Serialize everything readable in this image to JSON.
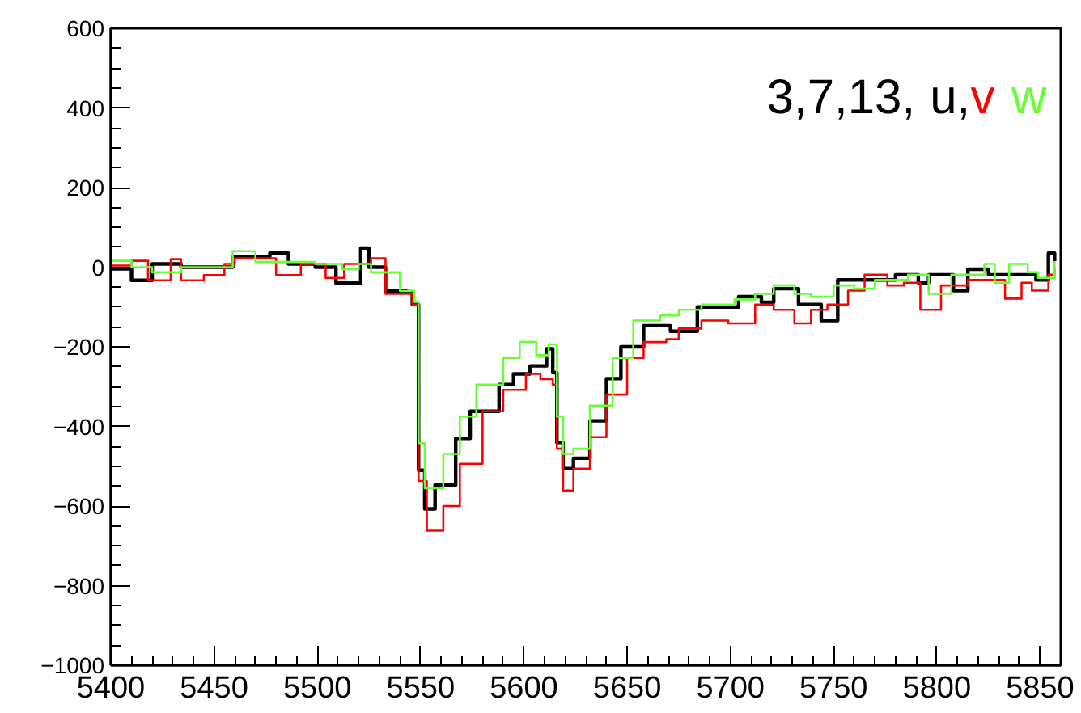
{
  "chart_data": {
    "type": "step",
    "title": "3,7,13,",
    "legend": "top right",
    "xlim": [
      5400,
      5860
    ],
    "ylim": [
      -1000,
      600
    ],
    "xticks": [
      5400,
      5450,
      5500,
      5550,
      5600,
      5650,
      5700,
      5750,
      5800,
      5850
    ],
    "yticks": [
      -1000,
      -800,
      -600,
      -400,
      -200,
      0,
      200,
      400,
      600
    ],
    "series": [
      {
        "name": "u,",
        "color": "#000000",
        "x": [
          5400,
          5410,
          5420,
          5434,
          5459,
          5477,
          5486,
          5499,
          5509,
          5521,
          5525,
          5533,
          5543,
          5546,
          5549,
          5552,
          5557,
          5567,
          5574,
          5588,
          5595,
          5603,
          5611,
          5614,
          5616,
          5619,
          5624,
          5632,
          5640,
          5647,
          5658,
          5671,
          5684,
          5704,
          5715,
          5721,
          5733,
          5744,
          5752,
          5770,
          5780,
          5791,
          5796,
          5808,
          5815,
          5825,
          5838,
          5848,
          5854,
          5857
        ],
        "values": [
          -4,
          -33,
          8,
          0,
          27,
          35,
          8,
          0,
          -40,
          48,
          0,
          -60,
          -62,
          -94,
          -510,
          -607,
          -547,
          -430,
          -362,
          -295,
          -268,
          -248,
          -205,
          -265,
          -440,
          -506,
          -480,
          -386,
          -280,
          -200,
          -147,
          -161,
          -100,
          -74,
          -88,
          -54,
          -94,
          -134,
          -32,
          -32,
          -19,
          -39,
          -19,
          -59,
          -5,
          -19,
          -19,
          -32,
          35,
          15
        ]
      },
      {
        "name": "v",
        "color": "#ff0000",
        "x": [
          5400,
          5410,
          5418,
          5429,
          5434,
          5445,
          5455,
          5460,
          5470,
          5480,
          5492,
          5504,
          5513,
          5526,
          5533,
          5546,
          5549,
          5553,
          5561,
          5569,
          5580,
          5590,
          5601,
          5608,
          5614,
          5616,
          5619,
          5624,
          5632,
          5640,
          5650,
          5658,
          5669,
          5675,
          5686,
          5699,
          5712,
          5721,
          5731,
          5739,
          5747,
          5757,
          5765,
          5776,
          5784,
          5792,
          5802,
          5815,
          5825,
          5833,
          5841,
          5846,
          5854,
          5857
        ],
        "values": [
          4,
          16,
          -33,
          20,
          -33,
          -20,
          8,
          22,
          22,
          -20,
          8,
          -27,
          8,
          22,
          -67,
          -94,
          -537,
          -662,
          -600,
          -494,
          -362,
          -308,
          -268,
          -281,
          -295,
          -456,
          -561,
          -506,
          -427,
          -320,
          -228,
          -188,
          -181,
          -154,
          -134,
          -141,
          -94,
          -107,
          -141,
          -107,
          -94,
          -59,
          -19,
          -46,
          -39,
          -107,
          -46,
          -32,
          -32,
          -79,
          -39,
          -59,
          -19,
          0
        ]
      },
      {
        "name": "w",
        "color": "#66ff33",
        "x": [
          5400,
          5410,
          5420,
          5434,
          5459,
          5470,
          5499,
          5512,
          5520,
          5526,
          5540,
          5547,
          5549,
          5552,
          5561,
          5569,
          5577,
          5590,
          5598,
          5606,
          5612,
          5616,
          5619,
          5624,
          5632,
          5643,
          5653,
          5666,
          5675,
          5686,
          5702,
          5712,
          5721,
          5731,
          5739,
          5750,
          5760,
          5770,
          5786,
          5796,
          5807,
          5823,
          5828,
          5835,
          5844,
          5849,
          5857
        ],
        "values": [
          16,
          0,
          -13,
          0,
          40,
          13,
          8,
          -5,
          8,
          -13,
          -60,
          -87,
          -442,
          -555,
          -469,
          -375,
          -295,
          -228,
          -188,
          -221,
          -194,
          -375,
          -469,
          -456,
          -348,
          -228,
          -134,
          -121,
          -107,
          -94,
          -81,
          -67,
          -46,
          -67,
          -74,
          -46,
          -54,
          -32,
          -19,
          -67,
          -19,
          8,
          -39,
          8,
          -13,
          -27,
          15
        ]
      }
    ]
  }
}
